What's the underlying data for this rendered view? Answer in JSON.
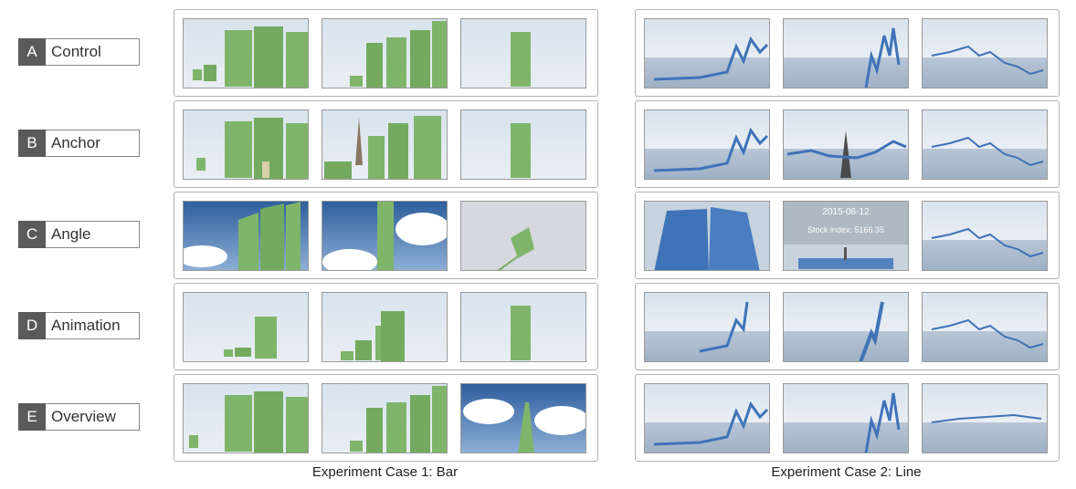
{
  "rows": [
    {
      "letter": "A",
      "name": "Control"
    },
    {
      "letter": "B",
      "name": "Anchor"
    },
    {
      "letter": "C",
      "name": "Angle"
    },
    {
      "letter": "D",
      "name": "Animation"
    },
    {
      "letter": "E",
      "name": "Overview"
    }
  ],
  "captions": {
    "bar": "Experiment Case 1: Bar",
    "line": "Experiment Case 2: Line"
  },
  "angle_overlay": {
    "date": "2015-06-12",
    "stock_index": "Stock index: 5166.35"
  },
  "colors": {
    "bar_green": "#7fb56a",
    "line_blue": "#3f73b8",
    "sky": "#c8d6e6",
    "label_dark": "#5a5a5a"
  }
}
